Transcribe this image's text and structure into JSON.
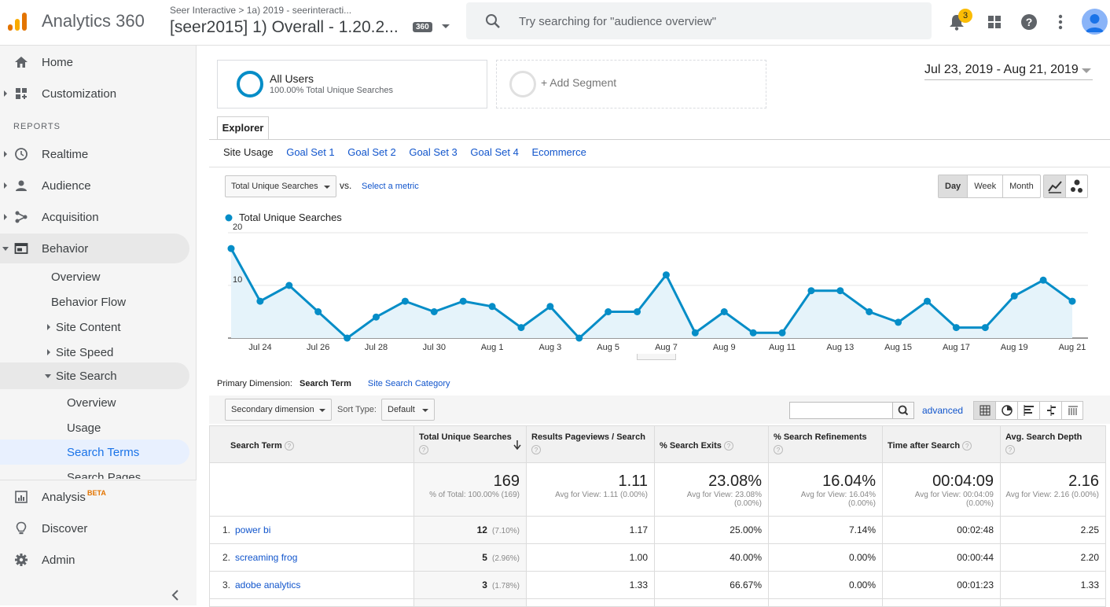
{
  "header": {
    "app_name": "Analytics 360",
    "account_path": "Seer Interactive  >  1a) 2019 - seerinteracti...",
    "view_name": "[seer2015] 1) Overall - 1.20.2...",
    "badge": "360",
    "search_placeholder": "Try searching for \"audience overview\"",
    "notification_count": "3"
  },
  "sidebar": {
    "home": "Home",
    "customization": "Customization",
    "reports_label": "REPORTS",
    "realtime": "Realtime",
    "audience": "Audience",
    "acquisition": "Acquisition",
    "behavior": "Behavior",
    "overview": "Overview",
    "behavior_flow": "Behavior Flow",
    "site_content": "Site Content",
    "site_speed": "Site Speed",
    "site_search": "Site Search",
    "ss_overview": "Overview",
    "ss_usage": "Usage",
    "ss_search_terms": "Search Terms",
    "ss_search_pages": "Search Pages",
    "analysis": "Analysis",
    "analysis_badge": "BETA",
    "discover": "Discover",
    "admin": "Admin"
  },
  "segments": {
    "all_users_title": "All Users",
    "all_users_sub": "100.00% Total Unique Searches",
    "add_segment": "+ Add Segment"
  },
  "date_range": "Jul 23, 2019 - Aug 21, 2019",
  "explorer": {
    "tab": "Explorer",
    "subtabs": [
      "Site Usage",
      "Goal Set 1",
      "Goal Set 2",
      "Goal Set 3",
      "Goal Set 4",
      "Ecommerce"
    ]
  },
  "chart_controls": {
    "metric": "Total Unique Searches",
    "vs": "vs.",
    "select_metric": "Select a metric",
    "day": "Day",
    "week": "Week",
    "month": "Month"
  },
  "chart_data": {
    "type": "area",
    "legend": "Total Unique Searches",
    "series_color": "#058dc7",
    "x_labels": [
      "Jul 24",
      "Jul 26",
      "Jul 28",
      "Jul 30",
      "Aug 1",
      "Aug 3",
      "Aug 5",
      "Aug 7",
      "Aug 9",
      "Aug 11",
      "Aug 13",
      "Aug 15",
      "Aug 17",
      "Aug 19",
      "Aug 21"
    ],
    "y_ticks": [
      "10",
      "20"
    ],
    "ylim": [
      0,
      20
    ],
    "values": [
      17,
      7,
      10,
      5,
      0,
      4,
      7,
      5,
      7,
      6,
      2,
      6,
      0,
      5,
      5,
      12,
      1,
      5,
      1,
      1,
      9,
      9,
      5,
      3,
      7,
      2,
      2,
      8,
      11,
      7
    ]
  },
  "table_controls": {
    "primary_dimension_label": "Primary Dimension:",
    "primary_dimension": "Search Term",
    "alt_dimension": "Site Search Category",
    "secondary_dimension": "Secondary dimension",
    "sort_type_label": "Sort Type:",
    "sort_type": "Default",
    "advanced": "advanced"
  },
  "table": {
    "headers": [
      "Search Term",
      "Total Unique Searches",
      "Results Pageviews / Search",
      "% Search Exits",
      "% Search Refinements",
      "Time after Search",
      "Avg. Search Depth"
    ],
    "totals": [
      {
        "big": "169",
        "small": "% of Total: 100.00% (169)"
      },
      {
        "big": "1.11",
        "small": "Avg for View: 1.11 (0.00%)"
      },
      {
        "big": "23.08%",
        "small": "Avg for View: 23.08% (0.00%)"
      },
      {
        "big": "16.04%",
        "small": "Avg for View: 16.04% (0.00%)"
      },
      {
        "big": "00:04:09",
        "small": "Avg for View: 00:04:09 (0.00%)"
      },
      {
        "big": "2.16",
        "small": "Avg for View: 2.16 (0.00%)"
      }
    ],
    "rows": [
      {
        "num": "1.",
        "term": "power bi",
        "searches": "12",
        "pct": "(7.10%)",
        "rpv": "1.17",
        "exits": "25.00%",
        "refine": "7.14%",
        "time": "00:02:48",
        "depth": "2.25"
      },
      {
        "num": "2.",
        "term": "screaming frog",
        "searches": "5",
        "pct": "(2.96%)",
        "rpv": "1.00",
        "exits": "40.00%",
        "refine": "0.00%",
        "time": "00:00:44",
        "depth": "2.20"
      },
      {
        "num": "3.",
        "term": "adobe analytics",
        "searches": "3",
        "pct": "(1.78%)",
        "rpv": "1.33",
        "exits": "66.67%",
        "refine": "0.00%",
        "time": "00:01:23",
        "depth": "1.33"
      }
    ]
  }
}
